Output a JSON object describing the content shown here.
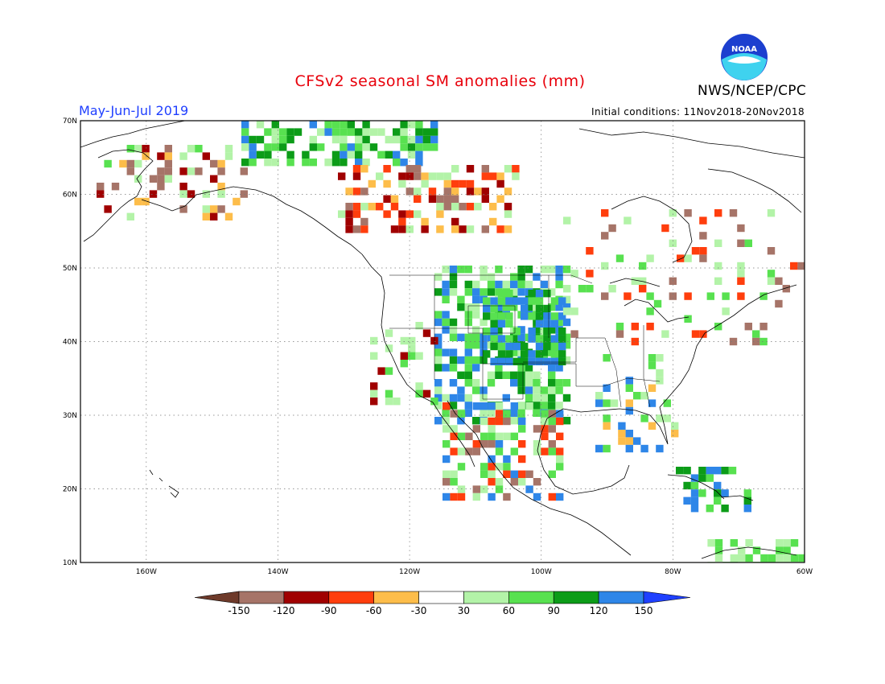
{
  "header": {
    "title": "CFSv2 seasonal SM anomalies (mm)",
    "season": "May-Jun-Jul 2019",
    "initial_conditions": "Initial conditions: 11Nov2018-20Nov2018",
    "agency": "NWS/NCEP/CPC",
    "logo_text": "NOAA"
  },
  "map": {
    "lon_range": [
      -170,
      -60
    ],
    "lat_range": [
      10,
      70
    ],
    "lat_labels": [
      "70N",
      "60N",
      "50N",
      "40N",
      "30N",
      "20N",
      "10N"
    ],
    "lon_labels": [
      "160W",
      "140W",
      "120W",
      "100W",
      "80W",
      "60W"
    ],
    "gridlines": "dotted"
  },
  "legend": {
    "ticks": [
      "-150",
      "-120",
      "-90",
      "-60",
      "-30",
      "30",
      "60",
      "90",
      "120",
      "150"
    ],
    "colors": [
      "#6e3a2a",
      "#a67468",
      "#a00000",
      "#ff3e0d",
      "#fdbd4a",
      "#ffffff",
      "#b3f3a8",
      "#58e150",
      "#0c9c18",
      "#2e86e8",
      "#1f40ff"
    ]
  }
}
